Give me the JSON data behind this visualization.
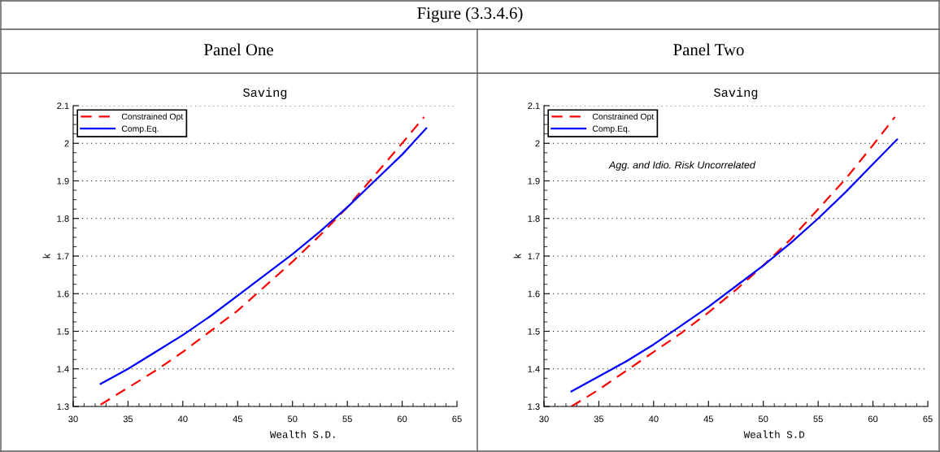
{
  "chart_data": [
    {
      "type": "line",
      "title": "Saving",
      "subtitle": "Panel One",
      "xlabel": "Wealth S.D.",
      "ylabel": "k",
      "annotations": [
        "Figure (3.3.4.6)"
      ],
      "xlim": [
        30,
        65
      ],
      "xticks": [
        30,
        35,
        40,
        45,
        50,
        55,
        60,
        65
      ],
      "ylim": [
        1.3,
        2.1
      ],
      "yticks": [
        1.3,
        1.4,
        1.5,
        1.6,
        1.7,
        1.8,
        1.9,
        2,
        2.1
      ],
      "grid": "y",
      "legend": "top left",
      "series": [
        {
          "name": "Constrained Opt",
          "color": "#ff0000",
          "line_style": "dashed",
          "x": [
            32.5,
            35,
            37.5,
            40,
            42.5,
            45,
            47.5,
            50,
            52.5,
            55,
            57.5,
            60,
            62
          ],
          "values": [
            1.305,
            1.35,
            1.395,
            1.445,
            1.5,
            1.555,
            1.62,
            1.685,
            1.755,
            1.83,
            1.915,
            2.0,
            2.07
          ]
        },
        {
          "name": "Comp.Eq.",
          "color": "#0000ff",
          "line_style": "solid",
          "x": [
            32.5,
            35,
            37.5,
            40,
            42.5,
            45,
            47.5,
            50,
            52.5,
            55,
            57.5,
            60,
            62.2
          ],
          "values": [
            1.36,
            1.4,
            1.445,
            1.49,
            1.54,
            1.595,
            1.65,
            1.705,
            1.765,
            1.83,
            1.9,
            1.97,
            2.04
          ]
        }
      ]
    },
    {
      "type": "line",
      "title": "Saving",
      "subtitle": "Panel Two",
      "xlabel": "Wealth S.D",
      "ylabel": "k",
      "annotations": [
        "Agg. and Idio. Risk Uncorrelated"
      ],
      "xlim": [
        30,
        65
      ],
      "xticks": [
        30,
        35,
        40,
        45,
        50,
        55,
        60,
        65
      ],
      "ylim": [
        1.3,
        2.1
      ],
      "yticks": [
        1.3,
        1.4,
        1.5,
        1.6,
        1.7,
        1.8,
        1.9,
        2,
        2.1
      ],
      "grid": "y",
      "legend": "top left",
      "series": [
        {
          "name": "Constrained Opt",
          "color": "#ff0000",
          "line_style": "dashed",
          "x": [
            32.5,
            35,
            37.5,
            40,
            42.5,
            45,
            47.5,
            50,
            52.5,
            55,
            57.5,
            60,
            62
          ],
          "values": [
            1.3,
            1.345,
            1.395,
            1.445,
            1.495,
            1.55,
            1.61,
            1.675,
            1.745,
            1.825,
            1.905,
            1.995,
            2.07
          ]
        },
        {
          "name": "Comp.Eq.",
          "color": "#0000ff",
          "line_style": "solid",
          "x": [
            32.5,
            35,
            37.5,
            40,
            42.5,
            45,
            47.5,
            50,
            52.5,
            55,
            57.5,
            60,
            62.2
          ],
          "values": [
            1.34,
            1.38,
            1.42,
            1.465,
            1.515,
            1.565,
            1.62,
            1.675,
            1.735,
            1.8,
            1.87,
            1.945,
            2.01
          ]
        }
      ]
    }
  ]
}
